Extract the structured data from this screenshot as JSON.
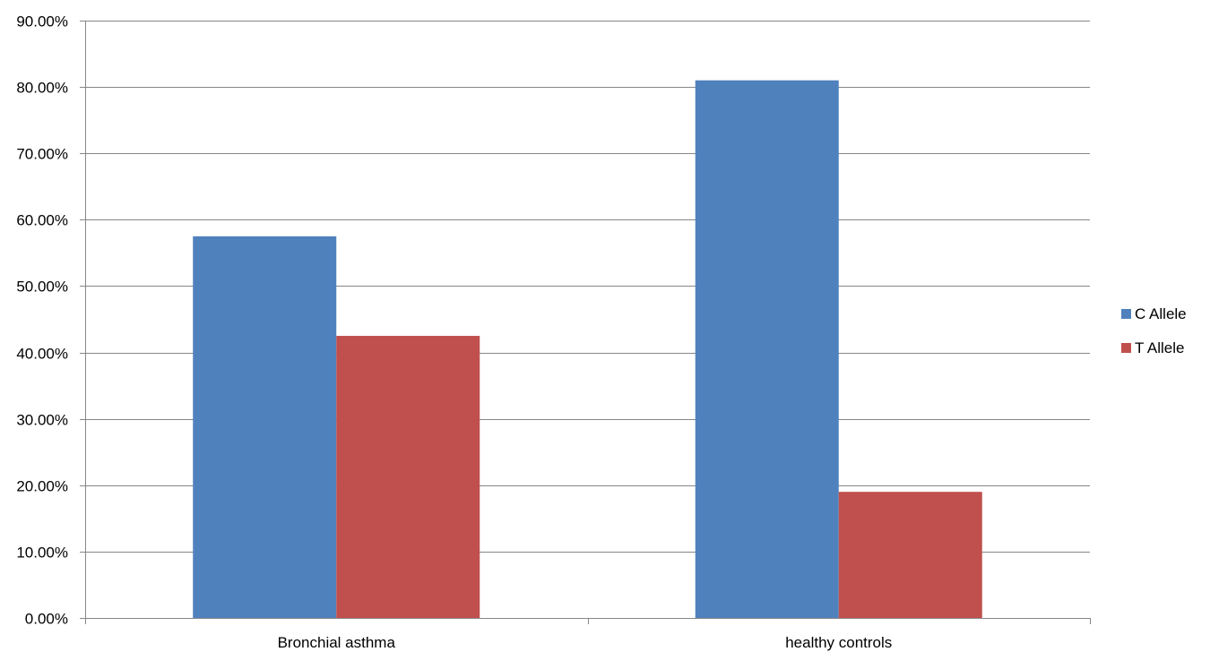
{
  "chart_data": {
    "type": "bar",
    "title": "",
    "xlabel": "",
    "ylabel": "",
    "categories": [
      "Bronchial asthma",
      "healthy controls"
    ],
    "series": [
      {
        "name": "C Allele",
        "values": [
          57.5,
          81.0
        ],
        "color": "#4f81bd"
      },
      {
        "name": "T Allele",
        "values": [
          42.5,
          19.0
        ],
        "color": "#c0504d"
      }
    ],
    "ylim": [
      0,
      90
    ],
    "y_ticks": [
      0,
      10,
      20,
      30,
      40,
      50,
      60,
      70,
      80,
      90
    ],
    "y_tick_labels": [
      "0.00%",
      "10.00%",
      "20.00%",
      "30.00%",
      "40.00%",
      "50.00%",
      "60.00%",
      "70.00%",
      "80.00%",
      "90.00%"
    ],
    "grid": true,
    "legend_position": "right",
    "colors": {
      "grid": "#868686",
      "axis": "#868686"
    }
  }
}
